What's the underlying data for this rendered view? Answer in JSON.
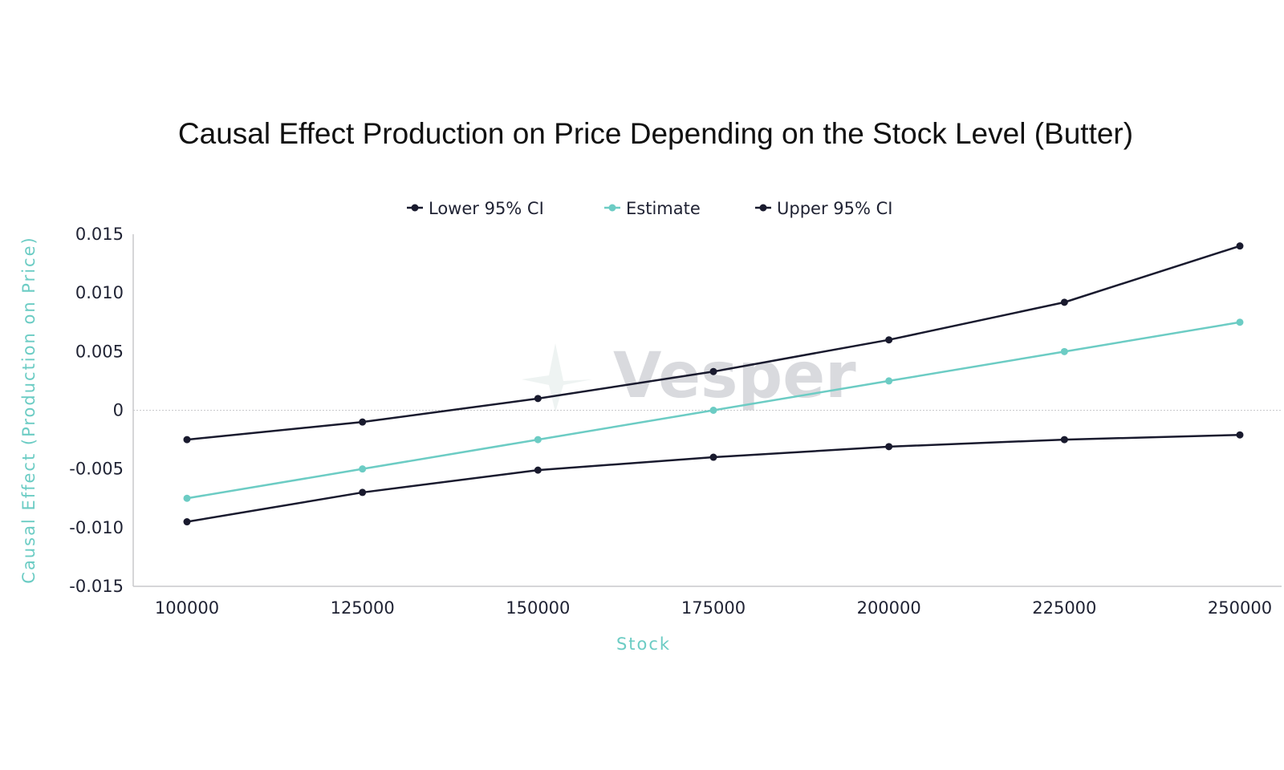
{
  "chart_data": {
    "type": "line",
    "title": "Causal Effect Production on Price Depending on the Stock Level (Butter)",
    "xlabel": "Stock",
    "ylabel": "Causal Effect (Production on Price)",
    "x": [
      100000,
      125000,
      150000,
      175000,
      200000,
      225000,
      250000
    ],
    "x_tick_labels": [
      "100000",
      "125000",
      "150000",
      "175000",
      "200000",
      "225000",
      "250000"
    ],
    "y_tick_labels": [
      "0.015",
      "0.010",
      "0.005",
      "0",
      "-0.005",
      "-0.010",
      "-0.015"
    ],
    "y_ticks": [
      0.015,
      0.01,
      0.005,
      0,
      -0.005,
      -0.01,
      -0.015
    ],
    "xlim": [
      100000,
      250000
    ],
    "ylim": [
      -0.015,
      0.015
    ],
    "legend_position": "top-center",
    "grid": false,
    "series": [
      {
        "name": "Lower 95% CI",
        "color": "#191a2e",
        "values": [
          -0.0095,
          -0.007,
          -0.0051,
          -0.004,
          -0.0031,
          -0.0025,
          -0.0021
        ]
      },
      {
        "name": "Estimate",
        "color": "#6cccc4",
        "values": [
          -0.0075,
          -0.005,
          -0.0025,
          0.0,
          0.0025,
          0.005,
          0.0075
        ]
      },
      {
        "name": "Upper 95% CI",
        "color": "#191a2e",
        "values": [
          -0.0025,
          -0.001,
          0.001,
          0.0033,
          0.006,
          0.0092,
          0.014
        ]
      }
    ]
  },
  "watermark": {
    "text": "Vesper"
  }
}
